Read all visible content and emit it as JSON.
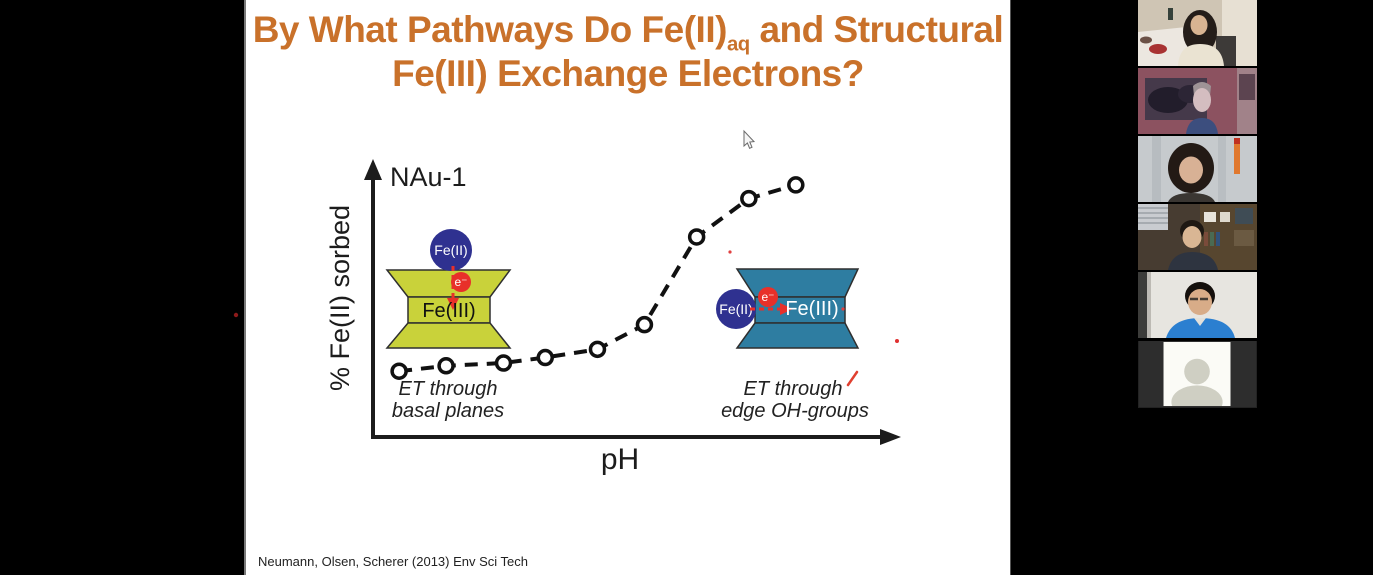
{
  "slide": {
    "title": {
      "line1_prefix": "By What Pathways Do Fe(II)",
      "line1_sub": "aq",
      "line1_suffix": " and Structural",
      "line2": "Fe(III) Exchange Electrons?",
      "color": "#C9712A"
    },
    "citation": "Neumann, Olsen, Scherer (2013) Env Sci Tech"
  },
  "chart_data": {
    "type": "line",
    "title": "NAu-1",
    "xlabel": "pH",
    "ylabel": "% Fe(II) sorbed",
    "axis_ticks": "none (qualitative sketch, unlabeled axes)",
    "line_style": "dashed with open circle markers",
    "points_norm": [
      [
        0.05,
        0.24
      ],
      [
        0.14,
        0.26
      ],
      [
        0.25,
        0.27
      ],
      [
        0.33,
        0.29
      ],
      [
        0.43,
        0.32
      ],
      [
        0.52,
        0.41
      ],
      [
        0.62,
        0.73
      ],
      [
        0.72,
        0.87
      ],
      [
        0.81,
        0.92
      ]
    ],
    "shape": "sigmoid increase of % Fe(II) sorbed with pH",
    "annotations": [
      "ET through basal planes",
      "ET through edge OH-groups"
    ]
  },
  "figure": {
    "nau1_label": "NAu-1",
    "ylabel": "% Fe(II) sorbed",
    "xlabel": "pH",
    "basal": {
      "fe2": "Fe(II)",
      "electron": "e⁻",
      "fe3": "Fe(III)",
      "caption_line1": "ET through",
      "caption_line2": "basal planes",
      "clay_color": "#C9D23A"
    },
    "edge": {
      "fe2": "Fe(II)",
      "electron": "e⁻",
      "fe3": "Fe(III)",
      "caption_line1": "ET through",
      "caption_line2": "edge OH-groups",
      "clay_color": "#2E7DA1"
    },
    "fe2_sphere_color": "#2F3190",
    "electron_color": "#E8302A",
    "curve_color": "#111111"
  },
  "participants": {
    "tiles": [
      {
        "name": "woman-at-white-desk"
      },
      {
        "name": "man-in-maroon-room"
      },
      {
        "name": "woman-short-hair-curtains"
      },
      {
        "name": "man-with-bookshelf"
      },
      {
        "name": "man-blue-jacket-glasses"
      },
      {
        "name": "avatar-placeholder"
      }
    ]
  }
}
